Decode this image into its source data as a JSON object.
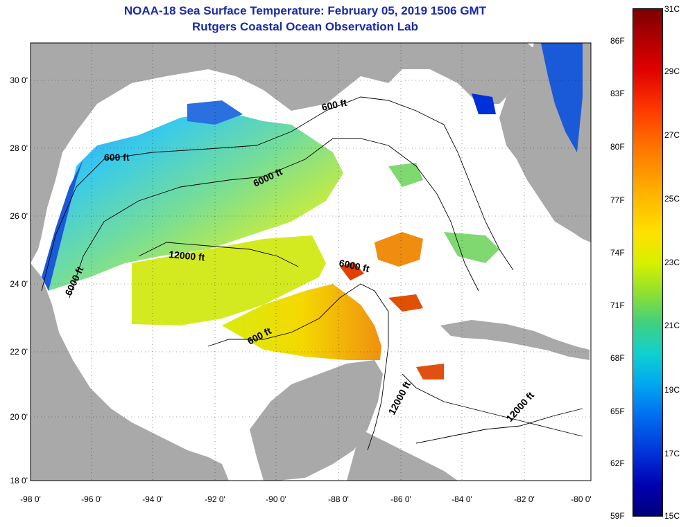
{
  "header": {
    "title": "NOAA-18 Sea Surface Temperature:  February 05, 2019 1506 GMT",
    "subtitle": "Rutgers Coastal Ocean Observation Lab"
  },
  "axes": {
    "x_ticks": [
      "-98 0'",
      "-96 0'",
      "-94 0'",
      "-92 0'",
      "-90 0'",
      "-88 0'",
      "-86 0'",
      "-84 0'",
      "-82 0'",
      "-80 0'"
    ],
    "y_ticks": [
      "30 0'",
      "28 0'",
      "26 0'",
      "24 0'",
      "22 0'",
      "20 0'",
      "18 0'"
    ]
  },
  "contours": {
    "labels": [
      "600 ft",
      "600 ft",
      "6000 ft",
      "12000 ft",
      "6000 ft",
      "6000 ft",
      "600 ft",
      "12000 ft",
      "12000 ft"
    ]
  },
  "colorbar": {
    "fahrenheit": [
      "86F",
      "83F",
      "80F",
      "77F",
      "74F",
      "71F",
      "68F",
      "65F",
      "62F",
      "59F"
    ],
    "celsius": [
      "31C",
      "29C",
      "27C",
      "25C",
      "23C",
      "21C",
      "19C",
      "17C",
      "15C"
    ]
  },
  "colors": {
    "land": "#a9a9a9",
    "no_data": "#ffffff",
    "title": "#1a2aa6",
    "cold": "#0030d8",
    "mid": "#e0f000",
    "warm": "#f07000"
  }
}
